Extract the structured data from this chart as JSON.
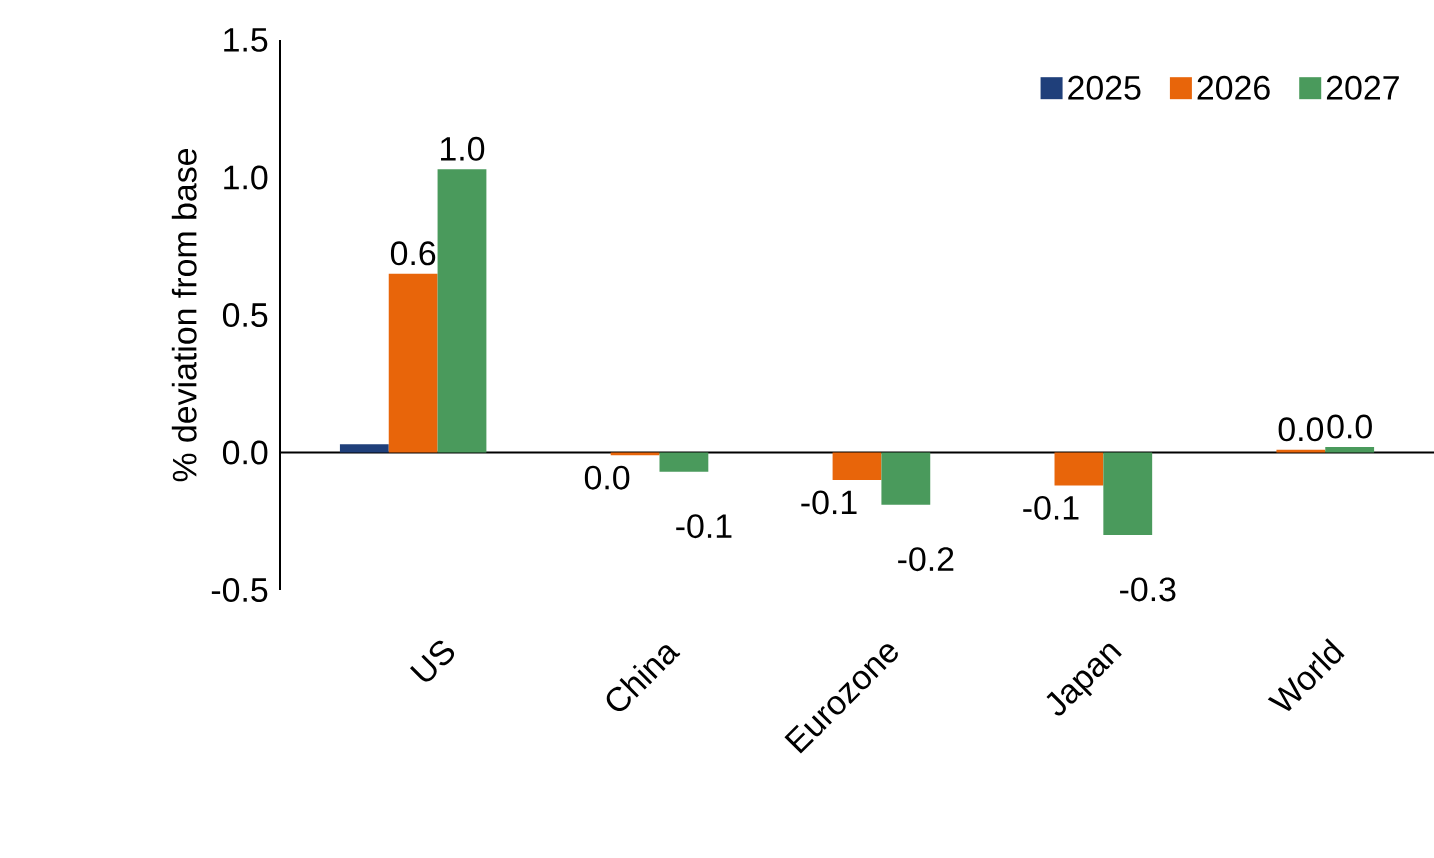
{
  "chart_data": {
    "type": "bar",
    "ylabel": "% deviation from base",
    "categories": [
      "US",
      "China",
      "Eurozone",
      "Japan",
      "World"
    ],
    "series": [
      {
        "name": "2025",
        "color": "#1f3f7a",
        "values": [
          0.03,
          0.0,
          0.0,
          0.0,
          0.0
        ]
      },
      {
        "name": "2026",
        "color": "#e8650a",
        "values": [
          0.65,
          -0.01,
          -0.1,
          -0.12,
          0.01
        ],
        "value_labels": [
          "0.6",
          "0.0",
          "-0.1",
          "-0.1",
          "0.0"
        ]
      },
      {
        "name": "2027",
        "color": "#4a9a5c",
        "values": [
          1.03,
          -0.07,
          -0.19,
          -0.3,
          0.02
        ],
        "value_labels": [
          "1.0",
          "-0.1",
          "-0.2",
          "-0.3",
          "0.0"
        ]
      }
    ],
    "ylim": [
      -0.5,
      1.5
    ],
    "yticks": [
      -0.5,
      {
        "value": 0,
        "label": "0.0"
      },
      0.5,
      {
        "value": 1,
        "label": "1.0"
      },
      1.5
    ],
    "legend": "top right"
  }
}
